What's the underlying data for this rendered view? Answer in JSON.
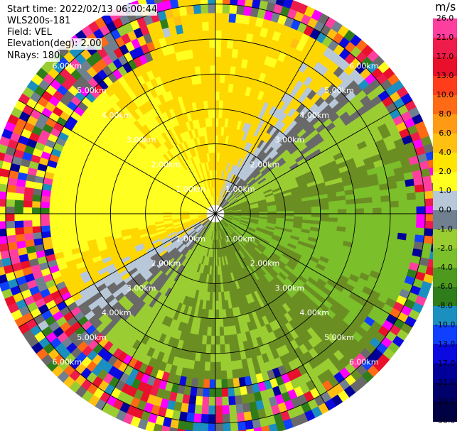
{
  "header": {
    "start_time": "Start time: 2022/02/13 06:00:44",
    "instrument": "WLS200s-181",
    "field": "Field: VEL",
    "elevation": "Elevation(deg): 2.00",
    "nrays": "NRays: 180"
  },
  "colorbar": {
    "unit": "m/s",
    "ticks": [
      "26.0",
      "21.0",
      "17.0",
      "13.0",
      "10.0",
      "8.0",
      "6.0",
      "4.0",
      "2.0",
      "1.0",
      "0.0",
      "-1.0",
      "-2.0",
      "-4.0",
      "-6.0",
      "-8.0",
      "-10.0",
      "-13.0",
      "-17.0",
      "-21.0",
      "-26.0",
      "-30.0"
    ],
    "colors": [
      "#ff3fa0",
      "#ee1c4a",
      "#e8102a",
      "#ff3d1a",
      "#ff6a14",
      "#ff9a14",
      "#ffc012",
      "#ffe400",
      "#ffff20",
      "#b8c8d8",
      "#708090",
      "#9acd32",
      "#7bbf2a",
      "#4e9a1e",
      "#2f7d1a",
      "#1a8fc0",
      "#1040ff",
      "#0a0ae0",
      "#000099",
      "#00006b",
      "#000045"
    ]
  },
  "chart_data": {
    "type": "heatmap",
    "projection": "polar PPI",
    "field": "VEL",
    "units": "m/s",
    "n_rays": 180,
    "elevation_deg": 2.0,
    "range_rings_km": [
      "1.00km",
      "2.00km",
      "3.00km",
      "4.00km",
      "5.00km",
      "6.00km"
    ],
    "max_range_km": 6.5,
    "value_range": [
      -30,
      26
    ],
    "dominant_pattern": "approaching (positive, yellow) to the north-west and east, receding (negative, green) to the north-east and south-west; noisy returns beyond ~4.5 km"
  }
}
